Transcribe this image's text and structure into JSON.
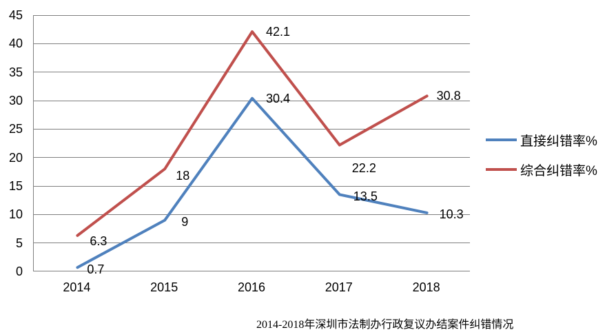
{
  "chart_data": {
    "type": "line",
    "title": "2014-2018年深圳市法制办行政复议办结案件纠错情况",
    "categories": [
      "2014",
      "2015",
      "2016",
      "2017",
      "2018"
    ],
    "series": [
      {
        "name": "直接纠错率%",
        "color": "#4F81BD",
        "values": [
          0.7,
          9,
          30.4,
          13.5,
          10.3
        ],
        "labels": [
          "0.7",
          "9",
          "30.4",
          "13.5",
          "10.3"
        ]
      },
      {
        "name": "综合纠错率%",
        "color": "#C0504D",
        "values": [
          6.3,
          18,
          42.1,
          22.2,
          30.8
        ],
        "labels": [
          "6.3",
          "18",
          "42.1",
          "22.2",
          "30.8"
        ]
      }
    ],
    "y_axis": {
      "min": 0,
      "max": 45,
      "step": 5,
      "ticks": [
        "0",
        "5",
        "10",
        "15",
        "20",
        "25",
        "30",
        "35",
        "40",
        "45"
      ]
    },
    "xlabel": "",
    "ylabel": "",
    "grid": true,
    "legend_position": "right",
    "colors": {
      "gridline": "#7F7F7F",
      "axis": "#7F7F7F",
      "text": "#000000",
      "background": "#FFFFFF"
    }
  }
}
